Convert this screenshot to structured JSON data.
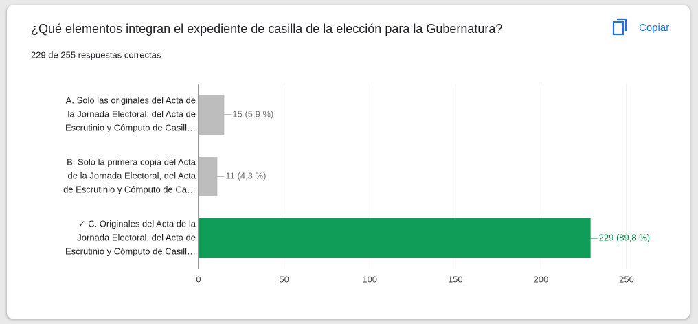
{
  "chart_data": {
    "type": "hbar",
    "title": "¿Qué elementos integran el expediente de casilla de la elección para la Gubernatura?",
    "subtitle": "229 de 255 respuestas correctas",
    "button": "Copiar",
    "categories": [
      [
        "A. Solo las originales del Acta de",
        "la Jornada Electoral, del Acta de",
        "Escrutinio y Cómputo de Casill…"
      ],
      [
        "B. Solo la primera copia del Acta",
        "de la Jornada Electoral, del Acta",
        "de Escrutinio y Cómputo de Ca…"
      ],
      [
        "✓ C. Originales del Acta de la",
        "Jornada Electoral, del Acta de",
        "Escrutinio y Cómputo de Casill…"
      ]
    ],
    "values": [
      15,
      11,
      229
    ],
    "value_labels": [
      "15 (5,9 %)",
      "11 (4,3 %)",
      "229 (89,8 %)"
    ],
    "colors": [
      "#bdbdbd",
      "#bdbdbd",
      "#0f9d58"
    ],
    "label_colors": [
      "#757575",
      "#757575",
      "#0b8043"
    ],
    "xlim": [
      0,
      250
    ],
    "xticks": [
      0,
      50,
      100,
      150,
      200,
      250
    ],
    "grid": true
  }
}
